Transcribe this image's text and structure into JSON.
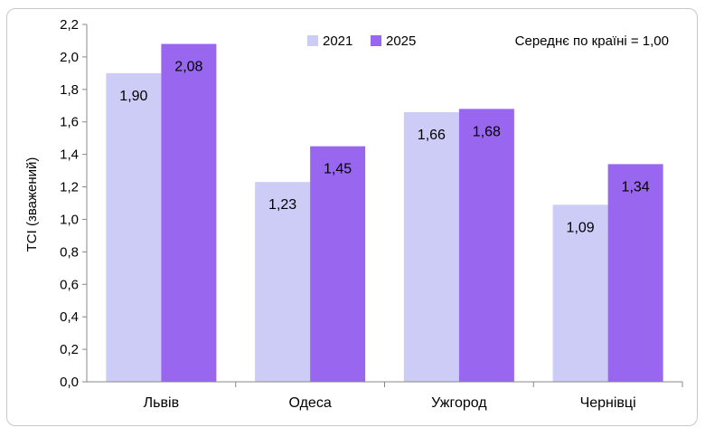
{
  "chart_data": {
    "type": "bar",
    "categories": [
      "Львів",
      "Одеса",
      "Ужгород",
      "Чернівці"
    ],
    "series": [
      {
        "name": "2021",
        "values": [
          1.9,
          1.23,
          1.66,
          1.09
        ],
        "labels": [
          "1,90",
          "1,23",
          "1,66",
          "1,09"
        ],
        "color": "#ccccf7"
      },
      {
        "name": "2025",
        "values": [
          2.08,
          1.45,
          1.68,
          1.34
        ],
        "labels": [
          "2,08",
          "1,45",
          "1,68",
          "1,34"
        ],
        "color": "#9966f0"
      }
    ],
    "ylabel": "TCI (зважений)",
    "ylim": [
      0,
      2.2
    ],
    "yticks": [
      0,
      0.2,
      0.4,
      0.6,
      0.8,
      1.0,
      1.2,
      1.4,
      1.6,
      1.8,
      2.0,
      2.2
    ],
    "ytick_labels": [
      "0,0",
      "0,2",
      "0,4",
      "0,6",
      "0,8",
      "1,0",
      "1,2",
      "1,4",
      "1,6",
      "1,8",
      "2,0",
      "2,2"
    ],
    "annotation": "Середнє по країні = 1,00",
    "legend_position": "top-center",
    "grid": false
  }
}
